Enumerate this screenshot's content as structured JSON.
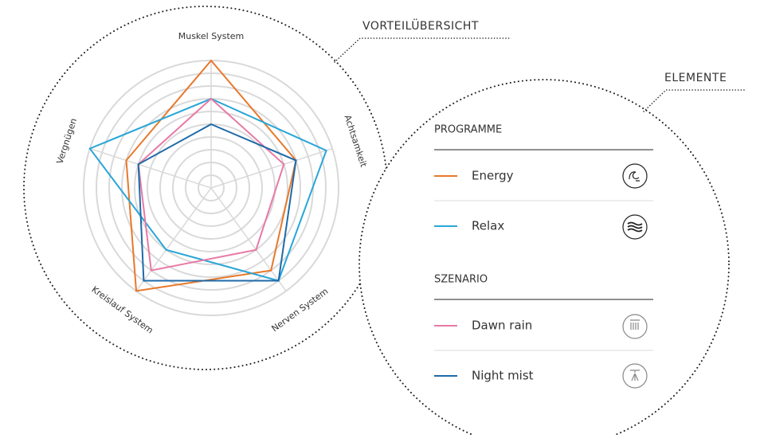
{
  "chart_data": {
    "type": "radar",
    "categories": [
      "Muskel System",
      "Achtsamkeit",
      "Nerven System",
      "Kreislauf System",
      "Vergnügen"
    ],
    "rlim": [
      0,
      10
    ],
    "rticks": [
      1,
      2,
      3,
      4,
      5,
      6,
      7,
      8,
      9,
      10
    ],
    "grid": true,
    "series": [
      {
        "name": "Energy",
        "color": "#e8782a",
        "values": [
          10,
          7,
          8,
          10,
          7
        ]
      },
      {
        "name": "Relax",
        "color": "#2aa6d8",
        "values": [
          7,
          9.5,
          9,
          6,
          10
        ]
      },
      {
        "name": "Dawn rain",
        "color": "#e879a6",
        "values": [
          7,
          6,
          6,
          8,
          6
        ]
      },
      {
        "name": "Night mist",
        "color": "#1f6aa8",
        "values": [
          5,
          7,
          9,
          9,
          6
        ]
      }
    ],
    "legend_groups": [
      {
        "title": "PROGRAMME"
      },
      {
        "title": "SZENARIO"
      }
    ],
    "annotations": [
      "VORTEILÜBERSICHT",
      "ELEMENTE"
    ]
  }
}
